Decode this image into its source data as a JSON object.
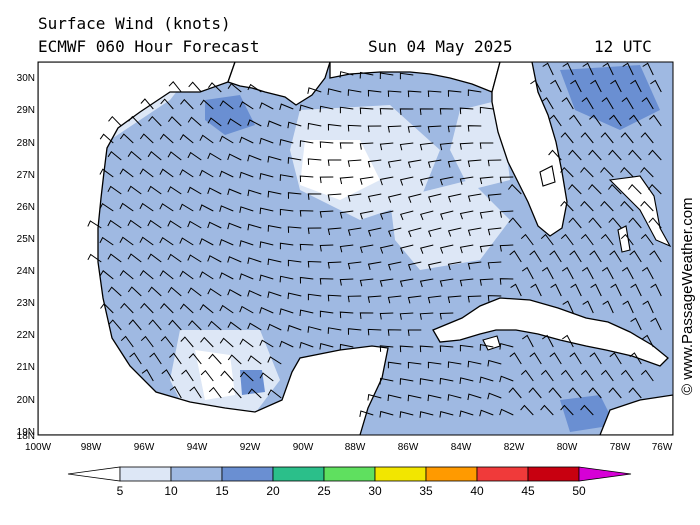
{
  "header": {
    "title": "Surface Wind (knots)",
    "model": "ECMWF 060 Hour Forecast",
    "date": "Sun 04 May 2025",
    "time": "12 UTC"
  },
  "credit": "© www.PassageWeather.com",
  "map": {
    "lat_labels": [
      "30N",
      "29N",
      "28N",
      "27N",
      "26N",
      "25N",
      "24N",
      "23N",
      "22N",
      "21N",
      "20N",
      "19N",
      "18N"
    ],
    "lon_labels": [
      "100W",
      "98W",
      "96W",
      "94W",
      "92W",
      "90W",
      "88W",
      "86W",
      "84W",
      "82W",
      "80W",
      "78W",
      "76W"
    ],
    "lat_range": [
      18,
      30.5
    ],
    "lon_range": [
      -100,
      -76
    ],
    "land_color": "#ffffff",
    "coast_color": "#000000"
  },
  "colorbar": {
    "labels": [
      "5",
      "10",
      "15",
      "20",
      "25",
      "30",
      "35",
      "40",
      "45",
      "50"
    ],
    "colors": [
      "#ffffff",
      "#dde7f6",
      "#9fb9e2",
      "#6a8fd2",
      "#2bbf8a",
      "#5fe05f",
      "#f2e600",
      "#ff9a00",
      "#f03a3a",
      "#c80010",
      "#d600d6"
    ]
  }
}
